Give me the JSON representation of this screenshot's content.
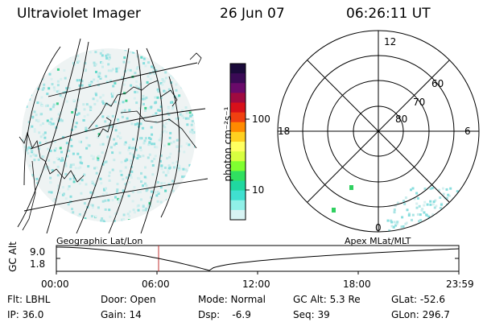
{
  "header": {
    "title": "Ultraviolet Imager",
    "date": "26 Jun 07",
    "time": "06:26:11 UT"
  },
  "colorbar": {
    "unit_label": "photon cm⁻²s⁻¹",
    "ticks": [
      "100",
      "10"
    ],
    "colors": [
      "#1a0a3a",
      "#3a0a55",
      "#6a0a6a",
      "#a00a40",
      "#d8101a",
      "#f04010",
      "#ff8a00",
      "#ffd020",
      "#ffff60",
      "#d8ff40",
      "#80ff30",
      "#30e060",
      "#20d8a0",
      "#40e0d0",
      "#90f0e8",
      "#d8f4f4"
    ]
  },
  "geo_map": {
    "caption": "Geographic Lat/Lon"
  },
  "polar_plot": {
    "caption": "Apex MLat/MLT",
    "mlt_labels": {
      "top": "12",
      "left": "18",
      "right": "6",
      "bottom": "0"
    },
    "lat_labels": [
      "60",
      "70",
      "80"
    ]
  },
  "altitude_plot": {
    "ylabel": "GC Alt",
    "yticks": [
      "9.0",
      "1.8"
    ],
    "xticks": [
      "00:00",
      "06:00",
      "12:00",
      "18:00",
      "23:59"
    ]
  },
  "info": {
    "flt": "Flt: LBHL",
    "ip": "IP: 36.0",
    "door": "Door: Open",
    "gain": "Gain: 14",
    "mode": "Mode: Normal",
    "dsp": "Dsp:    -6.9",
    "gcalt": "GC Alt: 5.3 Re",
    "seq": "Seq: 39",
    "glat": "GLat: -52.6",
    "glon": "GLon: 296.7"
  }
}
